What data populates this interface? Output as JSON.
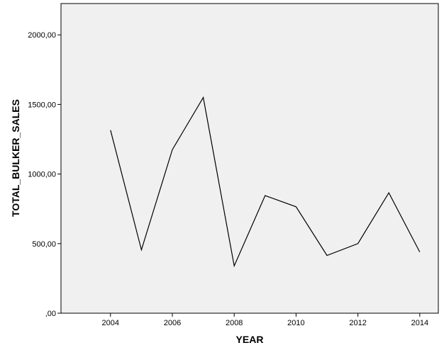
{
  "chart_data": {
    "type": "line",
    "title": "",
    "xlabel": "YEAR",
    "ylabel": "TOTAL_BULKER_SALES",
    "x": [
      2004,
      2005,
      2006,
      2007,
      2008,
      2009,
      2010,
      2011,
      2012,
      2013,
      2014
    ],
    "series": [
      {
        "values": [
          1315,
          455,
          1175,
          1550,
          340,
          845,
          765,
          415,
          500,
          865,
          440
        ]
      }
    ],
    "xlim": [
      2002.4,
      2014.6
    ],
    "ylim": [
      0,
      2225
    ],
    "x_ticks": [
      2004,
      2006,
      2008,
      2010,
      2012,
      2014
    ],
    "x_tick_labels": [
      "2004",
      "2006",
      "2008",
      "2010",
      "2012",
      "2014"
    ],
    "y_ticks": [
      0,
      500,
      1000,
      1500,
      2000
    ],
    "y_tick_labels": [
      ",00",
      "500,00",
      "1000,00",
      "1500,00",
      "2000,00"
    ],
    "grid": false,
    "line_color": "#000000",
    "plot_background": "#f0f0f0"
  }
}
